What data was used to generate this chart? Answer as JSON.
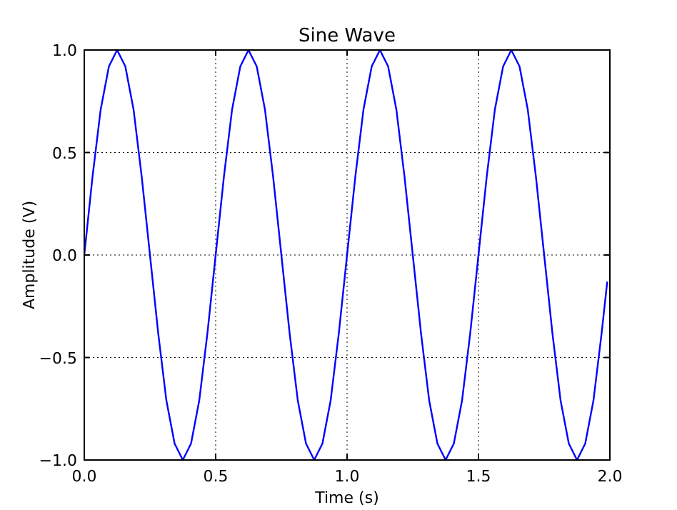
{
  "chart_data": {
    "type": "line",
    "title": "Sine Wave",
    "xlabel": "Time (s)",
    "ylabel": "Amplitude (V)",
    "x": [
      0,
      0.03125,
      0.0625,
      0.09375,
      0.125,
      0.15625,
      0.1875,
      0.21875,
      0.25,
      0.28125,
      0.3125,
      0.34375,
      0.375,
      0.40625,
      0.4375,
      0.46875,
      0.5,
      0.53125,
      0.5625,
      0.59375,
      0.625,
      0.65625,
      0.6875,
      0.71875,
      0.75,
      0.78125,
      0.8125,
      0.84375,
      0.875,
      0.90625,
      0.9375,
      0.96875,
      1,
      1.03125,
      1.0625,
      1.09375,
      1.125,
      1.15625,
      1.1875,
      1.21875,
      1.25,
      1.28125,
      1.3125,
      1.34375,
      1.375,
      1.40625,
      1.4375,
      1.46875,
      1.5,
      1.53125,
      1.5625,
      1.59375,
      1.625,
      1.65625,
      1.6875,
      1.71875,
      1.75,
      1.78125,
      1.8125,
      1.84375,
      1.875,
      1.90625,
      1.9375,
      1.96875,
      1.99
    ],
    "series": [
      {
        "color": "#0000ff",
        "values": [
          0,
          0.38,
          0.71,
          0.92,
          1,
          0.92,
          0.71,
          0.38,
          0,
          -0.38,
          -0.71,
          -0.92,
          -1,
          -0.92,
          -0.71,
          -0.38,
          0,
          0.38,
          0.71,
          0.92,
          1,
          0.92,
          0.71,
          0.38,
          0,
          -0.38,
          -0.71,
          -0.92,
          -1,
          -0.92,
          -0.71,
          -0.38,
          0,
          0.38,
          0.71,
          0.92,
          1,
          0.92,
          0.71,
          0.38,
          0,
          -0.38,
          -0.71,
          -0.92,
          -1,
          -0.92,
          -0.71,
          -0.38,
          0,
          0.38,
          0.71,
          0.92,
          1,
          0.92,
          0.71,
          0.38,
          0,
          -0.38,
          -0.71,
          -0.92,
          -1,
          -0.92,
          -0.71,
          -0.38,
          -0.13
        ]
      }
    ],
    "xlim": [
      0,
      2
    ],
    "ylim": [
      -1,
      1
    ],
    "xticks": [
      {
        "value": 0,
        "label": "0.0"
      },
      {
        "value": 0.5,
        "label": "0.5"
      },
      {
        "value": 1,
        "label": "1.0"
      },
      {
        "value": 1.5,
        "label": "1.5"
      },
      {
        "value": 2,
        "label": "2.0"
      }
    ],
    "yticks": [
      {
        "value": -1,
        "label": "−1.0"
      },
      {
        "value": -0.5,
        "label": "−0.5"
      },
      {
        "value": 0,
        "label": "0.0"
      },
      {
        "value": 0.5,
        "label": "0.5"
      },
      {
        "value": 1,
        "label": "1.0"
      }
    ],
    "grid": true,
    "marker": "none",
    "line_style": "solid"
  }
}
